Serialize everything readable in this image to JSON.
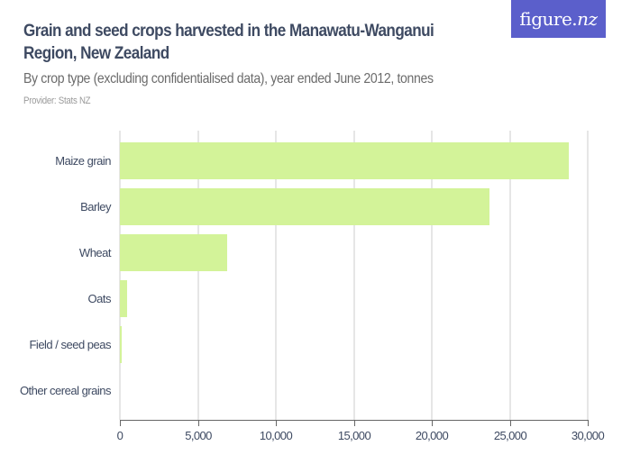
{
  "header": {
    "title": "Grain and seed crops harvested in the Manawatu-Wanganui Region, New Zealand",
    "subtitle": "By crop type (excluding confidentialised data), year ended June 2012, tonnes",
    "provider": "Provider: Stats NZ",
    "logo": {
      "text_main": "figure.",
      "text_nz": "nz",
      "bg_color": "#5b5fcb"
    }
  },
  "colors": {
    "bar": "#d3f399",
    "text": "#3e4a62",
    "grid": "#e6e6e6"
  },
  "chart_data": {
    "type": "bar",
    "orientation": "horizontal",
    "title": "Grain and seed crops harvested in the Manawatu-Wanganui Region, New Zealand",
    "subtitle": "By crop type (excluding confidentialised data), year ended June 2012, tonnes",
    "categories": [
      "Maize grain",
      "Barley",
      "Wheat",
      "Oats",
      "Field / seed peas",
      "Other cereal grains"
    ],
    "values": [
      28800,
      23700,
      6900,
      490,
      80,
      0
    ],
    "xlabel": "",
    "ylabel": "",
    "xlim": [
      0,
      30000
    ],
    "xticks": [
      0,
      5000,
      10000,
      15000,
      20000,
      25000,
      30000
    ],
    "xtick_labels": [
      "0",
      "5,000",
      "10,000",
      "15,000",
      "20,000",
      "25,000",
      "30,000"
    ],
    "grid": true,
    "legend": null
  }
}
